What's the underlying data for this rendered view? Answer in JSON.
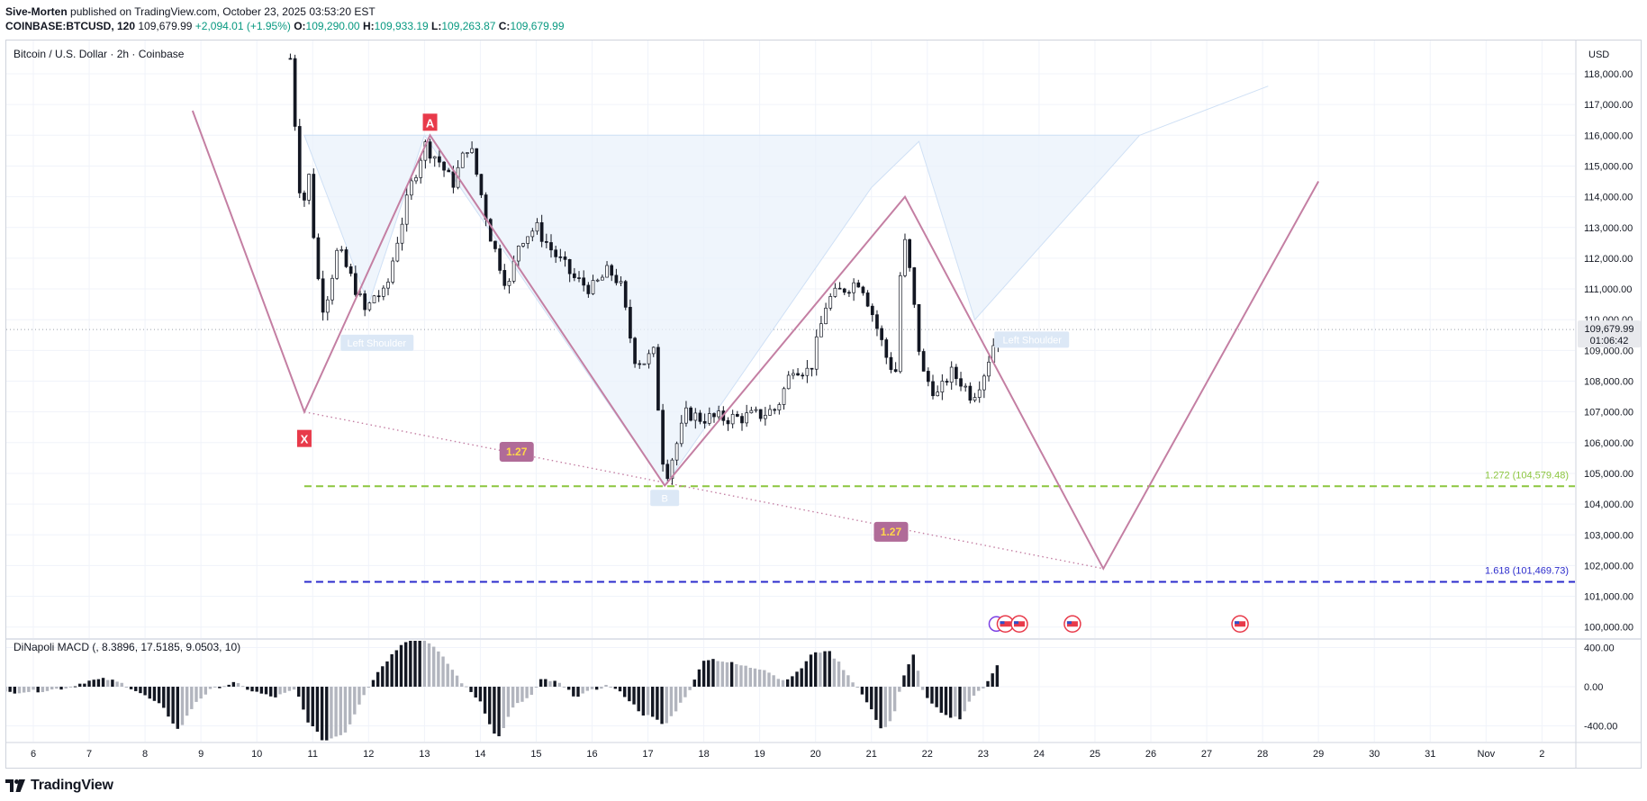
{
  "header": {
    "author": "Sive-Morten",
    "published_text": "published on TradingView.com, October 23, 2025 03:53:20 EST",
    "symbol": "COINBASE:BTCUSD, 120",
    "last": "109,679.99",
    "change": "+2,094.01 (+1.95%)",
    "o_label": "O:",
    "o_value": "109,290.00",
    "h_label": "H:",
    "h_value": "109,933.19",
    "l_label": "L:",
    "l_value": "109,263.87",
    "c_label": "C:",
    "c_value": "109,679.99"
  },
  "pane_title": "Bitcoin / U.S. Dollar · 2h · Coinbase",
  "currency": "USD",
  "price_label": "109,679.99",
  "countdown": "01:06:42",
  "footer_brand": "TradingView",
  "colors": {
    "up": "#089981",
    "pattern": "#c47fa3",
    "fib_1272": "#8cc63f",
    "fib_1618": "#2b2bcc",
    "marker": "#e83a4a",
    "ratio_box": "#b06b98",
    "ratio_text": "#ffd74a"
  },
  "annotations": {
    "x_label": "X",
    "a_label": "A",
    "left_shoulder": "Left Shoulder",
    "right_shoulder": "Left Shoulder",
    "bottom_label": "B",
    "ratio1": "1.27",
    "ratio2": "1.27",
    "fib1": "1.272 (104,579.48)",
    "fib2": "1.618 (101,469.73)"
  },
  "macd_label": "DiNapoli MACD (, 8.3896, 17.5185, 9.0503, 10)",
  "chart_data": {
    "type": "candlestick",
    "title": "Bitcoin / U.S. Dollar · 2h · Coinbase",
    "price_ticks": [
      118000,
      117000,
      116000,
      115000,
      114000,
      113000,
      112000,
      111000,
      110000,
      109000,
      108000,
      107000,
      106000,
      105000,
      104000,
      103000,
      102000,
      101000,
      100000
    ],
    "price_tick_labels": [
      "118,000.00",
      "117,000.00",
      "116,000.00",
      "115,000.00",
      "114,000.00",
      "113,000.00",
      "112,000.00",
      "111,000.00",
      "110,000.00",
      "109,000.00",
      "108,000.00",
      "107,000.00",
      "106,000.00",
      "105,000.00",
      "104,000.00",
      "103,000.00",
      "102,000.00",
      "101,000.00",
      "100,000.00"
    ],
    "x_ticks": [
      "6",
      "7",
      "8",
      "9",
      "10",
      "11",
      "12",
      "13",
      "14",
      "15",
      "16",
      "17",
      "18",
      "19",
      "20",
      "21",
      "22",
      "23",
      "24",
      "25",
      "26",
      "27",
      "28",
      "29",
      "30",
      "31",
      "Nov",
      "2"
    ],
    "price_path": [
      [
        10.6,
        118500
      ],
      [
        10.8,
        113500
      ],
      [
        10.95,
        114800
      ],
      [
        11.05,
        111800
      ],
      [
        11.2,
        110300
      ],
      [
        11.45,
        112300
      ],
      [
        11.75,
        111100
      ],
      [
        11.95,
        110200
      ],
      [
        12.1,
        110800
      ],
      [
        12.3,
        110800
      ],
      [
        12.5,
        112500
      ],
      [
        12.75,
        114300
      ],
      [
        13.0,
        115700
      ],
      [
        13.25,
        115200
      ],
      [
        13.5,
        114400
      ],
      [
        13.8,
        115800
      ],
      [
        14.0,
        114200
      ],
      [
        14.2,
        112600
      ],
      [
        14.5,
        111000
      ],
      [
        14.7,
        112600
      ],
      [
        15.0,
        113000
      ],
      [
        15.3,
        112200
      ],
      [
        15.7,
        111300
      ],
      [
        16.0,
        111000
      ],
      [
        16.3,
        111600
      ],
      [
        16.5,
        111200
      ],
      [
        16.75,
        108800
      ],
      [
        16.9,
        108600
      ],
      [
        17.1,
        108900
      ],
      [
        17.3,
        104800
      ],
      [
        17.45,
        105600
      ],
      [
        17.7,
        107000
      ],
      [
        17.9,
        106800
      ],
      [
        18.2,
        106800
      ],
      [
        18.6,
        106800
      ],
      [
        19.0,
        106900
      ],
      [
        19.3,
        107100
      ],
      [
        19.6,
        108500
      ],
      [
        19.9,
        108300
      ],
      [
        20.2,
        110600
      ],
      [
        20.5,
        111000
      ],
      [
        20.8,
        111300
      ],
      [
        21.0,
        110300
      ],
      [
        21.3,
        108600
      ],
      [
        21.45,
        108300
      ],
      [
        21.55,
        113000
      ],
      [
        21.7,
        111400
      ],
      [
        21.9,
        108300
      ],
      [
        22.2,
        107500
      ],
      [
        22.4,
        108300
      ],
      [
        22.6,
        108000
      ],
      [
        22.8,
        107500
      ],
      [
        23.0,
        108200
      ],
      [
        23.2,
        109300
      ],
      [
        23.32,
        109680
      ]
    ],
    "harmonic_pattern": {
      "points": [
        [
          8.85,
          116800
        ],
        [
          10.85,
          107000
        ],
        [
          13.1,
          116000
        ],
        [
          17.3,
          104600
        ],
        [
          21.6,
          114000
        ],
        [
          25.15,
          101900
        ],
        [
          29.0,
          114500
        ]
      ]
    },
    "head_shoulders_region": [
      [
        10.85,
        116000
      ],
      [
        12.0,
        110500
      ],
      [
        13.0,
        116000
      ],
      [
        17.3,
        104600
      ],
      [
        21.0,
        114300
      ],
      [
        21.85,
        115800
      ],
      [
        22.85,
        110000
      ],
      [
        25.8,
        116000
      ]
    ],
    "trendline": [
      [
        10.85,
        107000
      ],
      [
        25.15,
        101900
      ]
    ],
    "fib_levels": [
      {
        "label": "1.272 (104,579.48)",
        "value": 104579.48
      },
      {
        "label": "1.618 (101,469.73)",
        "value": 101469.73
      }
    ],
    "last_price": 109679.99,
    "macd": {
      "label": "DiNapoli MACD (, 8.3896, 17.5185, 9.0503, 10)",
      "ticks": [
        400,
        0,
        -400
      ],
      "tick_labels": [
        "400.00",
        "0.00",
        "-400.00"
      ],
      "path": [
        [
          5.5,
          -60
        ],
        [
          6.2,
          -40
        ],
        [
          6.6,
          -10
        ],
        [
          7.0,
          60
        ],
        [
          7.3,
          80
        ],
        [
          7.6,
          30
        ],
        [
          7.9,
          -60
        ],
        [
          8.3,
          -200
        ],
        [
          8.6,
          -450
        ],
        [
          8.9,
          -160
        ],
        [
          9.2,
          -20
        ],
        [
          9.6,
          40
        ],
        [
          9.9,
          -40
        ],
        [
          10.3,
          -110
        ],
        [
          10.7,
          -30
        ],
        [
          10.9,
          -340
        ],
        [
          11.2,
          -560
        ],
        [
          11.6,
          -460
        ],
        [
          11.9,
          -90
        ],
        [
          12.2,
          180
        ],
        [
          12.6,
          450
        ],
        [
          12.9,
          520
        ],
        [
          13.1,
          450
        ],
        [
          13.4,
          250
        ],
        [
          13.7,
          20
        ],
        [
          14.0,
          -150
        ],
        [
          14.3,
          -550
        ],
        [
          14.6,
          -200
        ],
        [
          14.9,
          -100
        ],
        [
          15.1,
          80
        ],
        [
          15.4,
          40
        ],
        [
          15.7,
          -100
        ],
        [
          16.0,
          -40
        ],
        [
          16.3,
          20
        ],
        [
          16.6,
          -100
        ],
        [
          16.9,
          -280
        ],
        [
          17.1,
          -320
        ],
        [
          17.3,
          -400
        ],
        [
          17.55,
          -200
        ],
        [
          17.8,
          20
        ],
        [
          18.0,
          280
        ],
        [
          18.2,
          280
        ],
        [
          18.5,
          240
        ],
        [
          18.8,
          200
        ],
        [
          19.1,
          180
        ],
        [
          19.4,
          60
        ],
        [
          19.7,
          150
        ],
        [
          19.9,
          320
        ],
        [
          20.2,
          380
        ],
        [
          20.4,
          260
        ],
        [
          20.7,
          30
        ],
        [
          20.9,
          -140
        ],
        [
          21.2,
          -450
        ],
        [
          21.4,
          -300
        ],
        [
          21.55,
          60
        ],
        [
          21.75,
          340
        ],
        [
          21.95,
          -100
        ],
        [
          22.3,
          -300
        ],
        [
          22.6,
          -320
        ],
        [
          22.8,
          -100
        ],
        [
          23.0,
          -20
        ],
        [
          23.3,
          280
        ]
      ]
    }
  }
}
